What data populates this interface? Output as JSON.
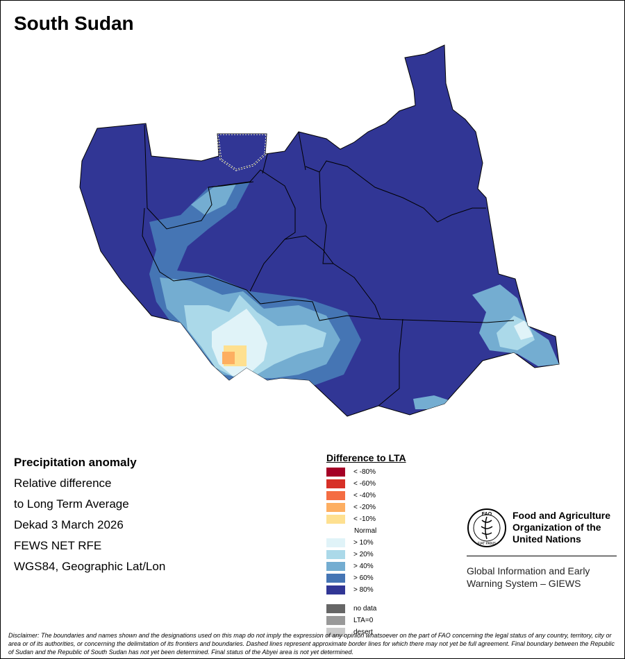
{
  "title": "South Sudan",
  "info": {
    "line1": "Precipitation anomaly",
    "line2": "Relative difference",
    "line3": "to Long Term Average",
    "line4": "Dekad 3 March 2026",
    "line5": "FEWS NET RFE",
    "line6": "WGS84, Geographic Lat/Lon"
  },
  "legend": {
    "title": "Difference to LTA",
    "dry": [
      {
        "label": "< -80%",
        "color": "#a50026"
      },
      {
        "label": "< -60%",
        "color": "#d73027"
      },
      {
        "label": "< -40%",
        "color": "#f46d43"
      },
      {
        "label": "< -20%",
        "color": "#fdae61"
      },
      {
        "label": "< -10%",
        "color": "#fee090"
      }
    ],
    "normal": "Normal",
    "wet": [
      {
        "label": "> 10%",
        "color": "#e0f3f8"
      },
      {
        "label": "> 20%",
        "color": "#abd9e9"
      },
      {
        "label": "> 40%",
        "color": "#74add1"
      },
      {
        "label": "> 60%",
        "color": "#4575b4"
      },
      {
        "label": "> 80%",
        "color": "#313695"
      }
    ],
    "other": [
      {
        "label": "no data",
        "color": "#666666"
      },
      {
        "label": "LTA=0",
        "color": "#999999"
      },
      {
        "label": "desert",
        "color": "#cccccc"
      }
    ]
  },
  "fao": {
    "name_line1": "Food and Agriculture",
    "name_line2": "Organization of the",
    "name_line3": "United Nations",
    "logo_text": "FAO",
    "motto": "FIAT PANIS"
  },
  "giews": {
    "line1": "Global Information and Early",
    "line2": "Warning System – GIEWS"
  },
  "disclaimer": "Disclaimer: The boundaries and names shown and the designations used on this map do not imply the expression of any opinion whatsoever on the part of FAO concerning the legal status of any country, territory, city or area or of its authorities, or concerning the delimitation of its frontiers and boundaries. Dashed lines represent approximate border lines for which there may not yet be full agreement. Final boundary between the Republic of Sudan and the Republic of South Sudan has not yet been determined. Final status of the Abyei area is not yet determined.",
  "colors": {
    "dominant": "#313695",
    "border": "#000000"
  }
}
